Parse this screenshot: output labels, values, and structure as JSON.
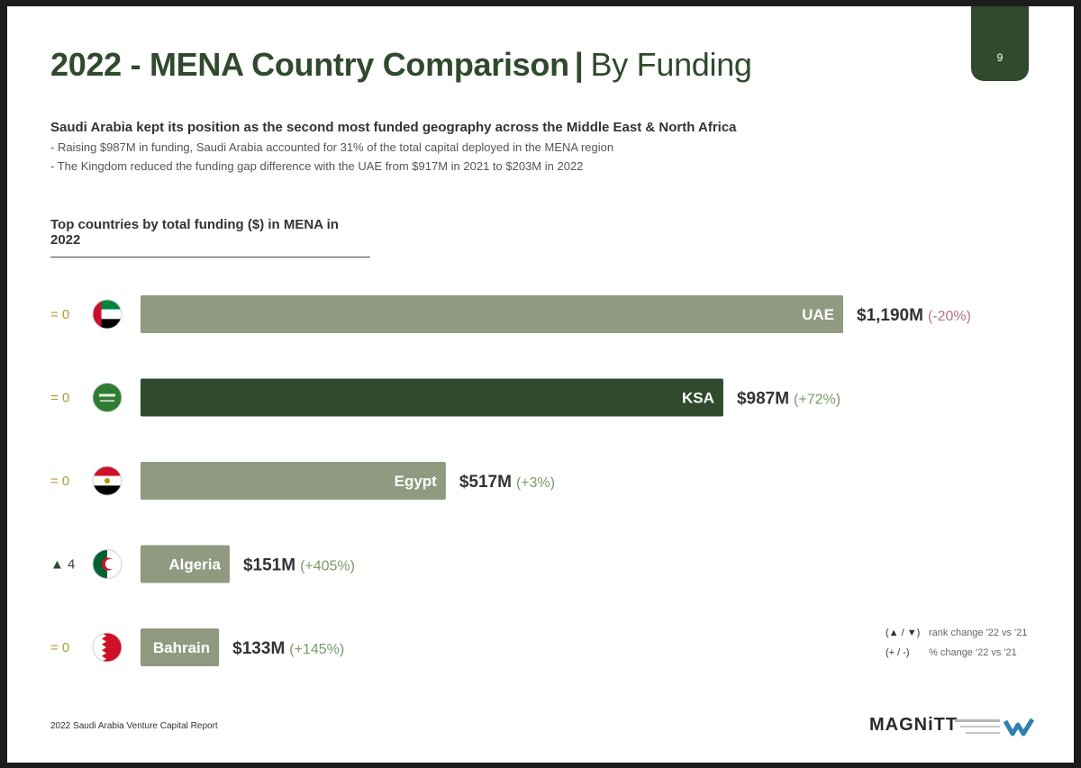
{
  "page": {
    "number": "9"
  },
  "header": {
    "title_main": "2022 - MENA Country Comparison",
    "title_separator": "|",
    "title_sub": "By Funding"
  },
  "summary": {
    "lead": "Saudi Arabia kept its position as the second most funded geography across the Middle East & North Africa",
    "bullets": [
      "- Raising $987M in funding, Saudi Arabia accounted for 31% of the total capital deployed in the MENA region",
      "- The Kingdom reduced the funding gap difference with the UAE from $917M in 2021 to $203M in 2022"
    ]
  },
  "chart_data": {
    "type": "bar",
    "orientation": "horizontal",
    "title": "Top countries by total funding ($) in MENA in 2022",
    "unit": "$M",
    "categories": [
      "UAE",
      "KSA",
      "Egypt",
      "Algeria",
      "Bahrain"
    ],
    "values": [
      1190,
      987,
      517,
      151,
      133
    ],
    "value_labels": [
      "$1,190M",
      "$987M",
      "$517M",
      "$151M",
      "$133M"
    ],
    "pct_change_labels": [
      "(-20%)",
      "(+72%)",
      "(+3%)",
      "(+405%)",
      "(+145%)"
    ],
    "pct_change_direction": [
      "down",
      "up",
      "up",
      "up",
      "up"
    ],
    "rank_change_labels": [
      "= 0",
      "= 0",
      "= 0",
      "▲ 4",
      "= 0"
    ],
    "flag_icons": [
      "uae-flag-icon",
      "ksa-flag-icon",
      "egypt-flag-icon",
      "algeria-flag-icon",
      "bahrain-flag-icon"
    ],
    "highlight": "KSA",
    "xlim": [
      0,
      1190
    ],
    "colors": {
      "bar": "#8f9a80",
      "highlight_bar": "#2f4a2c",
      "rank_neutral": "#b39a2e",
      "rank_up": "#2f4a2c",
      "pct_up": "#7a9a6a",
      "pct_down": "#b8737d",
      "value": "#333333"
    }
  },
  "legend": {
    "rank_symbol": "(▲ / ▼)",
    "rank_text": "rank change '22 vs '21",
    "pct_symbol": "(+ / -)",
    "pct_text": "% change '22 vs '21"
  },
  "footer": {
    "note": "2022 Saudi Arabia Venture Capital Report",
    "brand": "MAGNiTT"
  }
}
